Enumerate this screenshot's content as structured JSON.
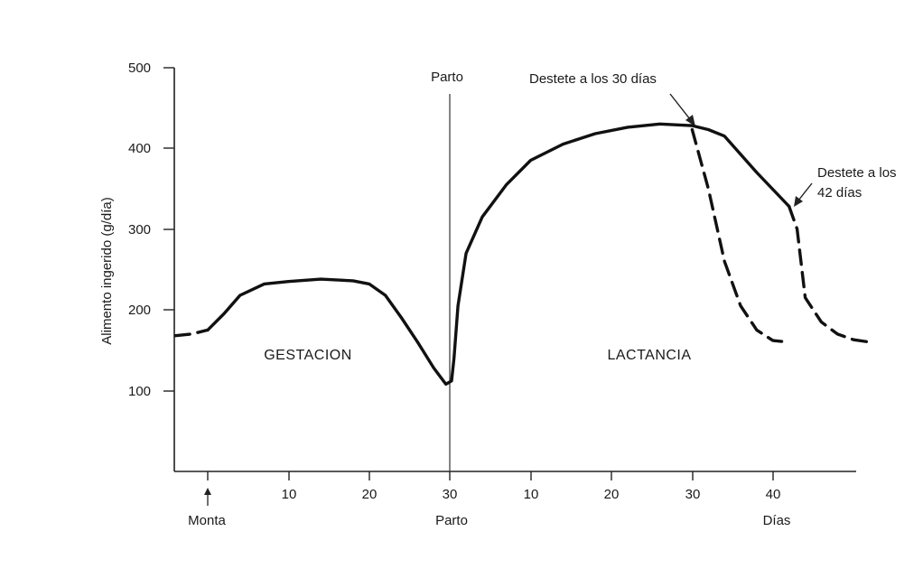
{
  "chart_data": {
    "type": "line",
    "ylabel": "Alimento ingerido (g/día)",
    "ylim": [
      0,
      500
    ],
    "yticks": [
      100,
      200,
      300,
      400,
      500
    ],
    "x_tick_labels": [
      "10",
      "20",
      "30",
      "10",
      "20",
      "30",
      "40"
    ],
    "x_event_labels": {
      "monta": "Monta",
      "parto_bottom": "Parto",
      "parto_top": "Parto",
      "dias": "Días"
    },
    "regions": {
      "gestation": "GESTACION",
      "lactation": "LACTANCIA"
    },
    "annotations": {
      "weaning_30": "Destete a los 30 días",
      "weaning_42_line1": "Destete a los",
      "weaning_42_line2": "42 días"
    },
    "series": [
      {
        "style": "solid",
        "x": [
          0,
          2,
          4,
          7,
          10,
          14,
          18,
          20,
          22,
          24,
          26,
          28,
          29.5,
          30.2,
          30.5,
          31,
          32,
          34,
          37,
          40,
          44,
          48,
          52,
          56,
          60,
          62,
          64,
          68,
          72
        ],
        "y": [
          175,
          195,
          218,
          232,
          235,
          238,
          236,
          232,
          218,
          190,
          160,
          128,
          108,
          112,
          140,
          205,
          270,
          315,
          355,
          385,
          405,
          418,
          426,
          430,
          428,
          423,
          415,
          370,
          328
        ]
      },
      {
        "style": "dashed",
        "x": [
          -4,
          -2,
          0
        ],
        "y": [
          168,
          170,
          175
        ]
      },
      {
        "style": "dashed",
        "x": [
          60,
          62,
          64,
          66,
          68,
          70,
          72
        ],
        "y": [
          423,
          350,
          260,
          205,
          175,
          162,
          160
        ]
      },
      {
        "style": "dashed",
        "x": [
          72,
          73,
          74,
          76,
          78,
          80,
          82
        ],
        "y": [
          328,
          300,
          215,
          185,
          170,
          163,
          160
        ]
      }
    ]
  }
}
